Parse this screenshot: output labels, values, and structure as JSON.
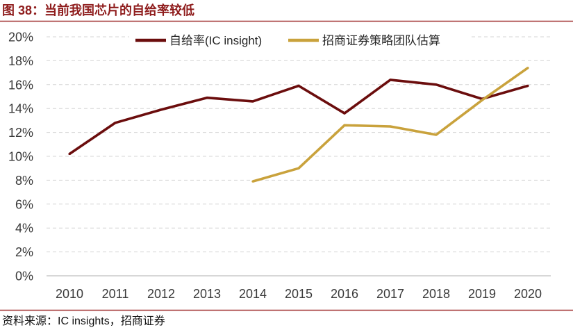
{
  "footer": {
    "source": "资料来源：IC insights，招商证券"
  },
  "colors": {
    "title": "#8F1D1D",
    "rule": "#A03030"
  },
  "chart_data": {
    "type": "line",
    "title": "图 38：当前我国芯片的自给率较低",
    "categories": [
      "2010",
      "2011",
      "2012",
      "2013",
      "2014",
      "2015",
      "2016",
      "2017",
      "2018",
      "2019",
      "2020"
    ],
    "series": [
      {
        "name": "自给率(IC insight)",
        "color": "#6B0D0D",
        "values": [
          10.2,
          12.8,
          13.9,
          14.9,
          14.6,
          15.9,
          13.6,
          16.4,
          16.0,
          14.8,
          15.9
        ]
      },
      {
        "name": "招商证券策略团队估算",
        "color": "#C9A23C",
        "values": [
          null,
          null,
          null,
          null,
          7.9,
          9.0,
          12.6,
          12.5,
          11.8,
          14.7,
          17.4
        ]
      }
    ],
    "ylim": [
      0,
      20
    ],
    "y_tick_step": 2,
    "y_tick_labels": [
      "0%",
      "2%",
      "4%",
      "6%",
      "8%",
      "10%",
      "12%",
      "14%",
      "16%",
      "18%",
      "20%"
    ],
    "grid": true,
    "legend": "top-center"
  }
}
